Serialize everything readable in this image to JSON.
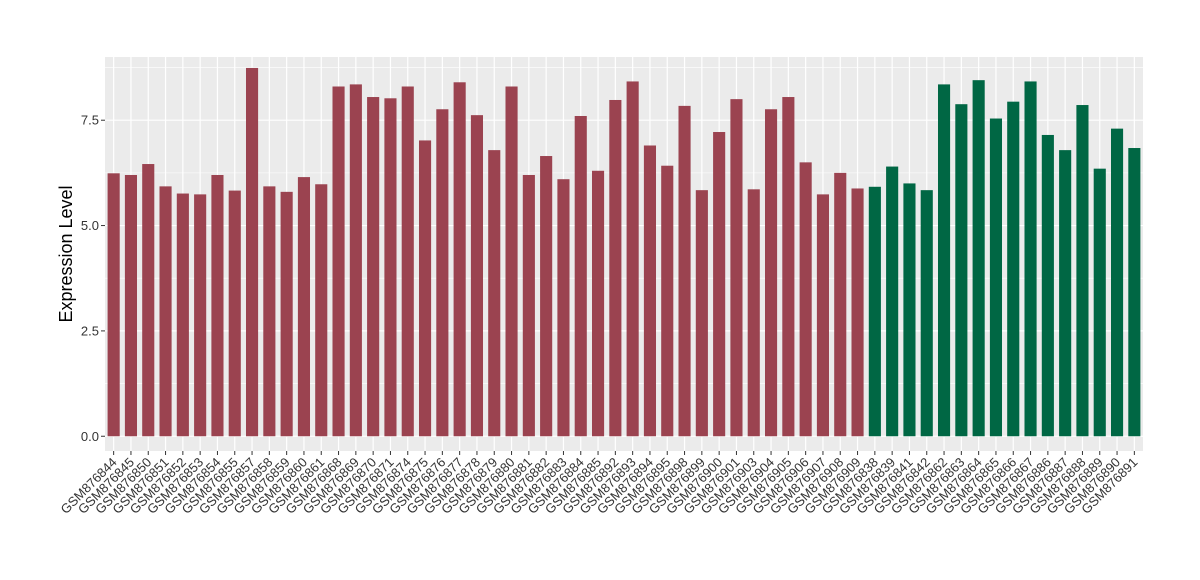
{
  "chart_data": {
    "type": "bar",
    "title": "",
    "xlabel": "",
    "ylabel": "Expression Level",
    "ylim": [
      -0.35,
      9.0
    ],
    "yticks": [
      0.0,
      2.5,
      5.0,
      7.5
    ],
    "ytick_labels": [
      "0.0",
      "2.5",
      "5.0",
      "7.5"
    ],
    "grid": true,
    "legend": "none",
    "colors": {
      "panel_bg": "#ebebeb",
      "grid": "#ffffff",
      "group_a": "#9b4350",
      "group_b": "#006744"
    },
    "categories": [
      "GSM876844",
      "GSM876845",
      "GSM876850",
      "GSM876851",
      "GSM876852",
      "GSM876853",
      "GSM876854",
      "GSM876855",
      "GSM876857",
      "GSM876858",
      "GSM876859",
      "GSM876860",
      "GSM876861",
      "GSM876868",
      "GSM876869",
      "GSM876870",
      "GSM876871",
      "GSM876874",
      "GSM876875",
      "GSM876876",
      "GSM876877",
      "GSM876878",
      "GSM876879",
      "GSM876880",
      "GSM876881",
      "GSM876882",
      "GSM876883",
      "GSM876884",
      "GSM876885",
      "GSM876892",
      "GSM876893",
      "GSM876894",
      "GSM876895",
      "GSM876898",
      "GSM876899",
      "GSM876900",
      "GSM876901",
      "GSM876903",
      "GSM876904",
      "GSM876905",
      "GSM876906",
      "GSM876907",
      "GSM876908",
      "GSM876909",
      "GSM876838",
      "GSM876839",
      "GSM876841",
      "GSM876842",
      "GSM876862",
      "GSM876863",
      "GSM876864",
      "GSM876865",
      "GSM876866",
      "GSM876867",
      "GSM876886",
      "GSM876887",
      "GSM876888",
      "GSM876889",
      "GSM876890",
      "GSM876891"
    ],
    "values": [
      6.24,
      6.2,
      6.46,
      5.93,
      5.76,
      5.74,
      6.2,
      5.83,
      8.74,
      5.93,
      5.8,
      6.15,
      5.98,
      8.3,
      8.35,
      8.05,
      8.02,
      8.3,
      7.02,
      7.76,
      8.4,
      7.62,
      6.79,
      8.3,
      6.2,
      6.65,
      6.1,
      7.6,
      6.3,
      7.98,
      8.42,
      6.9,
      6.42,
      7.84,
      5.84,
      7.22,
      8.0,
      5.86,
      7.76,
      8.05,
      6.5,
      5.74,
      6.25,
      5.88,
      5.92,
      6.4,
      6.0,
      5.84,
      8.35,
      7.88,
      8.45,
      7.54,
      7.94,
      8.42,
      7.15,
      6.79,
      7.86,
      6.35,
      7.3,
      6.84
    ],
    "groups": [
      "a",
      "a",
      "a",
      "a",
      "a",
      "a",
      "a",
      "a",
      "a",
      "a",
      "a",
      "a",
      "a",
      "a",
      "a",
      "a",
      "a",
      "a",
      "a",
      "a",
      "a",
      "a",
      "a",
      "a",
      "a",
      "a",
      "a",
      "a",
      "a",
      "a",
      "a",
      "a",
      "a",
      "a",
      "a",
      "a",
      "a",
      "a",
      "a",
      "a",
      "a",
      "a",
      "a",
      "a",
      "b",
      "b",
      "b",
      "b",
      "b",
      "b",
      "b",
      "b",
      "b",
      "b",
      "b",
      "b",
      "b",
      "b",
      "b",
      "b"
    ]
  }
}
